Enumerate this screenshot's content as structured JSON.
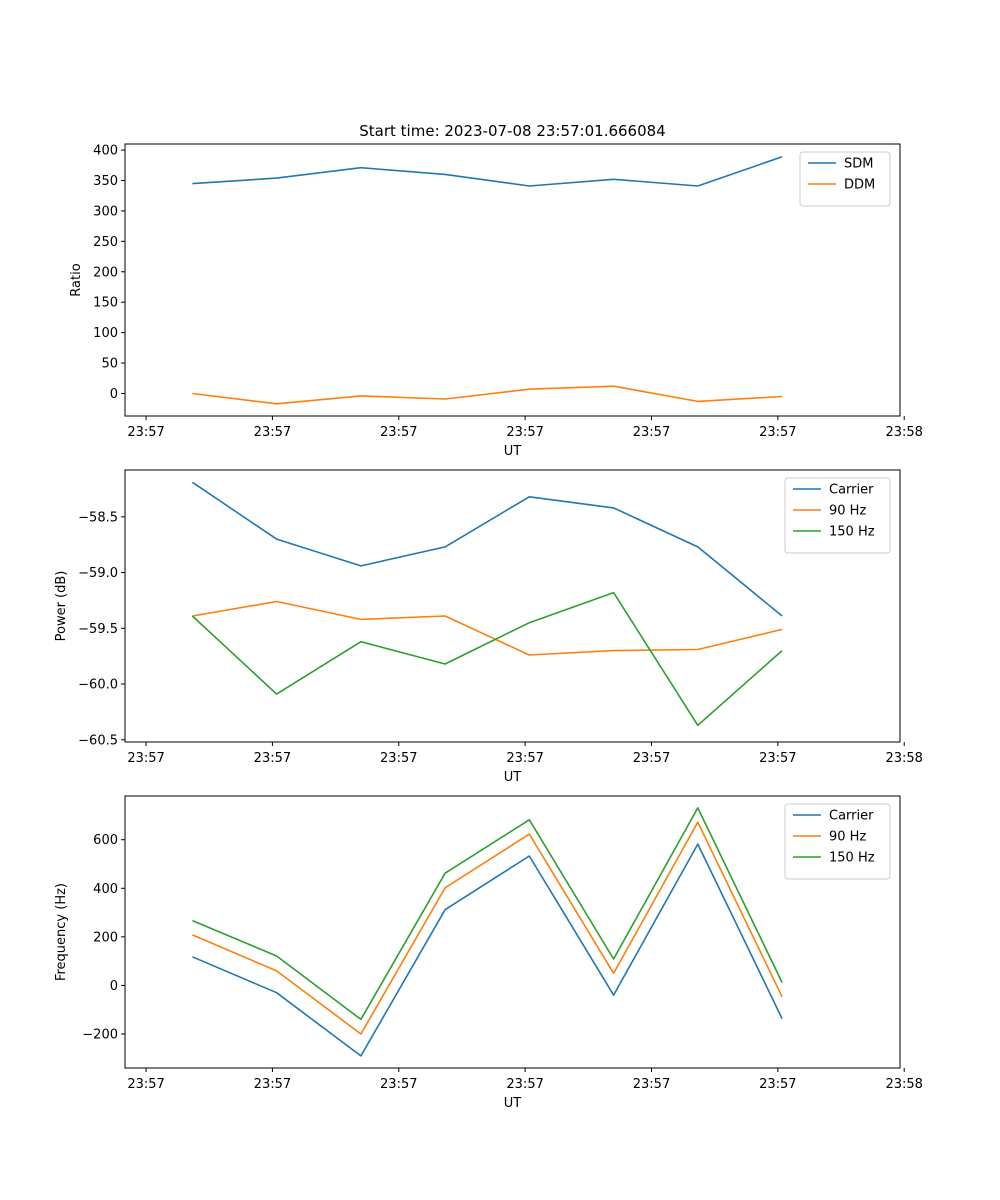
{
  "chart_data": [
    {
      "type": "line",
      "title": "Start time: 2023-07-08 23:57:01.666084",
      "xlabel": "UT",
      "ylabel": "Ratio",
      "x": [
        1,
        2,
        3,
        4,
        5,
        6,
        7,
        8
      ],
      "xlim": [
        0.2,
        9.4
      ],
      "ylim": [
        -37,
        410
      ],
      "yticks": [
        0,
        50,
        100,
        150,
        200,
        250,
        300,
        350,
        400
      ],
      "ytick_labels": [
        "0",
        "50",
        "100",
        "150",
        "200",
        "250",
        "300",
        "350",
        "400"
      ],
      "xticks": [
        0.45,
        1.95,
        3.45,
        4.95,
        6.45,
        7.95,
        9.45
      ],
      "xtick_labels": [
        "23:57",
        "23:57",
        "23:57",
        "23:57",
        "23:57",
        "23:57",
        "23:58"
      ],
      "legend": "top-right",
      "series": [
        {
          "name": "SDM",
          "color": "#1f77b4",
          "values": [
            345,
            354,
            371,
            360,
            341,
            352,
            341,
            389
          ]
        },
        {
          "name": "DDM",
          "color": "#ff7f0e",
          "values": [
            0,
            -17,
            -4,
            -9,
            7,
            12,
            -13,
            -5
          ]
        }
      ]
    },
    {
      "type": "line",
      "title": "",
      "xlabel": "UT",
      "ylabel": "Power (dB)",
      "x": [
        1,
        2,
        3,
        4,
        5,
        6,
        7,
        8
      ],
      "xlim": [
        0.2,
        9.4
      ],
      "ylim": [
        -60.52,
        -58.08
      ],
      "yticks": [
        -60.5,
        -60.0,
        -59.5,
        -59.0,
        -58.5
      ],
      "ytick_labels": [
        "−60.5",
        "−60.0",
        "−59.5",
        "−59.0",
        "−58.5"
      ],
      "xticks": [
        0.45,
        1.95,
        3.45,
        4.95,
        6.45,
        7.95,
        9.45
      ],
      "xtick_labels": [
        "23:57",
        "23:57",
        "23:57",
        "23:57",
        "23:57",
        "23:57",
        "23:58"
      ],
      "legend": "top-right",
      "series": [
        {
          "name": "Carrier",
          "color": "#1f77b4",
          "values": [
            -58.19,
            -58.7,
            -58.94,
            -58.77,
            -58.32,
            -58.42,
            -58.77,
            -59.39
          ]
        },
        {
          "name": "90 Hz",
          "color": "#ff7f0e",
          "values": [
            -59.39,
            -59.26,
            -59.42,
            -59.39,
            -59.74,
            -59.7,
            -59.69,
            -59.51
          ]
        },
        {
          "name": "150 Hz",
          "color": "#2ca02c",
          "values": [
            -59.39,
            -60.09,
            -59.62,
            -59.82,
            -59.45,
            -59.18,
            -60.37,
            -59.7
          ]
        }
      ]
    },
    {
      "type": "line",
      "title": "",
      "xlabel": "UT",
      "ylabel": "Frequency (Hz)",
      "x": [
        1,
        2,
        3,
        4,
        5,
        6,
        7,
        8
      ],
      "xlim": [
        0.2,
        9.4
      ],
      "ylim": [
        -340,
        780
      ],
      "yticks": [
        -200,
        0,
        200,
        400,
        600
      ],
      "ytick_labels": [
        "−200",
        "0",
        "200",
        "400",
        "600"
      ],
      "xticks": [
        0.45,
        1.95,
        3.45,
        4.95,
        6.45,
        7.95,
        9.45
      ],
      "xtick_labels": [
        "23:57",
        "23:57",
        "23:57",
        "23:57",
        "23:57",
        "23:57",
        "23:58"
      ],
      "legend": "top-right",
      "series": [
        {
          "name": "Carrier",
          "color": "#1f77b4",
          "values": [
            118,
            -30,
            -290,
            312,
            533,
            -40,
            582,
            -137
          ]
        },
        {
          "name": "90 Hz",
          "color": "#ff7f0e",
          "values": [
            208,
            60,
            -200,
            402,
            623,
            50,
            672,
            -47
          ]
        },
        {
          "name": "150 Hz",
          "color": "#2ca02c",
          "values": [
            267,
            121,
            -140,
            462,
            682,
            109,
            731,
            12
          ]
        }
      ]
    }
  ]
}
